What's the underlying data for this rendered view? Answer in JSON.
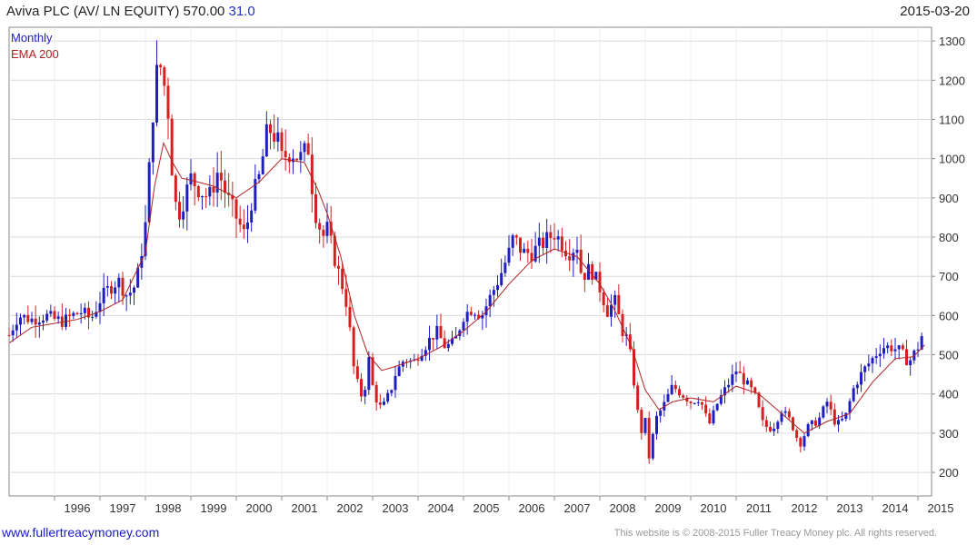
{
  "header": {
    "title": "Aviva PLC (AV/ LN EQUITY) 570.00",
    "change": "31.0",
    "date": "2015-03-20"
  },
  "footer": {
    "website": "www.fullertreacymoney.com",
    "copyright": "This website is © 2008-2015 Fuller Treacy Money plc. All rights reserved."
  },
  "colors": {
    "up": "#1f1fbf",
    "down": "#d42020",
    "ema": "#b22222",
    "grid": "#d9d9d9",
    "frame": "#888888"
  },
  "chart_data": {
    "type": "candlestick",
    "legend": [
      {
        "label": "Monthly",
        "color": "#1f1fbf"
      },
      {
        "label": "EMA 200",
        "color": "#b22222"
      }
    ],
    "legend_placement": "top-left",
    "grid": true,
    "ylim": [
      140,
      1335
    ],
    "xlim": [
      1995.0,
      2015.3
    ],
    "y_ticks": [
      200,
      300,
      400,
      500,
      600,
      700,
      800,
      900,
      1000,
      1100,
      1200,
      1300
    ],
    "x_ticks": [
      "1996",
      "1997",
      "1998",
      "1999",
      "2000",
      "2001",
      "2002",
      "2003",
      "2004",
      "2005",
      "2006",
      "2007",
      "2008",
      "2009",
      "2010",
      "2011",
      "2012",
      "2013",
      "2014",
      "2015"
    ],
    "close_series": [
      [
        1995.0,
        550
      ],
      [
        1995.2,
        600
      ],
      [
        1995.5,
        590
      ],
      [
        1995.8,
        600
      ],
      [
        1996.0,
        590
      ],
      [
        1996.2,
        585
      ],
      [
        1996.4,
        600
      ],
      [
        1996.6,
        610
      ],
      [
        1996.8,
        590
      ],
      [
        1997.0,
        640
      ],
      [
        1997.2,
        670
      ],
      [
        1997.4,
        690
      ],
      [
        1997.6,
        650
      ],
      [
        1997.8,
        680
      ],
      [
        1998.0,
        830
      ],
      [
        1998.1,
        1000
      ],
      [
        1998.2,
        1180
      ],
      [
        1998.3,
        1250
      ],
      [
        1998.4,
        1200
      ],
      [
        1998.5,
        1120
      ],
      [
        1998.6,
        950
      ],
      [
        1998.7,
        850
      ],
      [
        1998.8,
        880
      ],
      [
        1999.0,
        950
      ],
      [
        1999.2,
        920
      ],
      [
        1999.4,
        900
      ],
      [
        1999.6,
        970
      ],
      [
        1999.8,
        900
      ],
      [
        2000.0,
        850
      ],
      [
        2000.2,
        800
      ],
      [
        2000.3,
        880
      ],
      [
        2000.5,
        950
      ],
      [
        2000.7,
        1080
      ],
      [
        2000.9,
        1050
      ],
      [
        2001.0,
        1000
      ],
      [
        2001.2,
        1020
      ],
      [
        2001.4,
        1000
      ],
      [
        2001.6,
        1030
      ],
      [
        2001.7,
        880
      ],
      [
        2001.9,
        800
      ],
      [
        2002.0,
        820
      ],
      [
        2002.2,
        730
      ],
      [
        2002.4,
        650
      ],
      [
        2002.5,
        560
      ],
      [
        2002.6,
        450
      ],
      [
        2002.8,
        380
      ],
      [
        2002.9,
        500
      ],
      [
        2003.0,
        420
      ],
      [
        2003.1,
        380
      ],
      [
        2003.2,
        360
      ],
      [
        2003.4,
        410
      ],
      [
        2003.5,
        450
      ],
      [
        2003.7,
        490
      ],
      [
        2003.9,
        480
      ],
      [
        2004.0,
        500
      ],
      [
        2004.2,
        530
      ],
      [
        2004.4,
        560
      ],
      [
        2004.6,
        520
      ],
      [
        2004.8,
        530
      ],
      [
        2005.0,
        600
      ],
      [
        2005.2,
        620
      ],
      [
        2005.4,
        600
      ],
      [
        2005.6,
        650
      ],
      [
        2005.8,
        700
      ],
      [
        2006.0,
        760
      ],
      [
        2006.1,
        800
      ],
      [
        2006.3,
        760
      ],
      [
        2006.5,
        760
      ],
      [
        2006.7,
        780
      ],
      [
        2006.9,
        800
      ],
      [
        2007.0,
        810
      ],
      [
        2007.2,
        780
      ],
      [
        2007.3,
        760
      ],
      [
        2007.5,
        780
      ],
      [
        2007.6,
        700
      ],
      [
        2007.8,
        720
      ],
      [
        2008.0,
        670
      ],
      [
        2008.2,
        600
      ],
      [
        2008.3,
        650
      ],
      [
        2008.5,
        560
      ],
      [
        2008.6,
        540
      ],
      [
        2008.7,
        480
      ],
      [
        2008.8,
        380
      ],
      [
        2008.9,
        300
      ],
      [
        2009.0,
        330
      ],
      [
        2009.1,
        220
      ],
      [
        2009.2,
        330
      ],
      [
        2009.4,
        370
      ],
      [
        2009.6,
        420
      ],
      [
        2009.8,
        400
      ],
      [
        2010.0,
        380
      ],
      [
        2010.2,
        390
      ],
      [
        2010.4,
        320
      ],
      [
        2010.6,
        380
      ],
      [
        2010.8,
        420
      ],
      [
        2011.0,
        460
      ],
      [
        2011.2,
        430
      ],
      [
        2011.4,
        400
      ],
      [
        2011.6,
        320
      ],
      [
        2011.8,
        310
      ],
      [
        2012.0,
        360
      ],
      [
        2012.2,
        330
      ],
      [
        2012.4,
        270
      ],
      [
        2012.6,
        320
      ],
      [
        2012.8,
        330
      ],
      [
        2013.0,
        380
      ],
      [
        2013.2,
        320
      ],
      [
        2013.4,
        340
      ],
      [
        2013.6,
        420
      ],
      [
        2013.8,
        460
      ],
      [
        2014.0,
        490
      ],
      [
        2014.2,
        520
      ],
      [
        2014.4,
        520
      ],
      [
        2014.6,
        510
      ],
      [
        2014.8,
        480
      ],
      [
        2015.0,
        520
      ],
      [
        2015.15,
        570
      ]
    ],
    "ema_series": [
      [
        1995.0,
        530
      ],
      [
        1995.5,
        570
      ],
      [
        1996.0,
        580
      ],
      [
        1996.5,
        590
      ],
      [
        1997.0,
        610
      ],
      [
        1997.5,
        640
      ],
      [
        1998.0,
        760
      ],
      [
        1998.2,
        930
      ],
      [
        1998.4,
        1040
      ],
      [
        1998.6,
        990
      ],
      [
        1998.8,
        950
      ],
      [
        1999.0,
        945
      ],
      [
        1999.5,
        930
      ],
      [
        2000.0,
        900
      ],
      [
        2000.5,
        940
      ],
      [
        2001.0,
        1000
      ],
      [
        2001.5,
        990
      ],
      [
        2001.8,
        920
      ],
      [
        2002.0,
        860
      ],
      [
        2002.3,
        750
      ],
      [
        2002.6,
        600
      ],
      [
        2002.9,
        500
      ],
      [
        2003.2,
        460
      ],
      [
        2003.5,
        470
      ],
      [
        2004.0,
        490
      ],
      [
        2004.5,
        520
      ],
      [
        2005.0,
        560
      ],
      [
        2005.5,
        610
      ],
      [
        2006.0,
        680
      ],
      [
        2006.5,
        740
      ],
      [
        2007.0,
        770
      ],
      [
        2007.5,
        750
      ],
      [
        2008.0,
        680
      ],
      [
        2008.3,
        620
      ],
      [
        2008.7,
        520
      ],
      [
        2009.0,
        410
      ],
      [
        2009.3,
        360
      ],
      [
        2009.6,
        380
      ],
      [
        2010.0,
        390
      ],
      [
        2010.5,
        380
      ],
      [
        2011.0,
        420
      ],
      [
        2011.5,
        400
      ],
      [
        2012.0,
        350
      ],
      [
        2012.5,
        300
      ],
      [
        2013.0,
        330
      ],
      [
        2013.5,
        350
      ],
      [
        2014.0,
        430
      ],
      [
        2014.5,
        490
      ],
      [
        2014.9,
        495
      ],
      [
        2015.15,
        525
      ]
    ]
  }
}
